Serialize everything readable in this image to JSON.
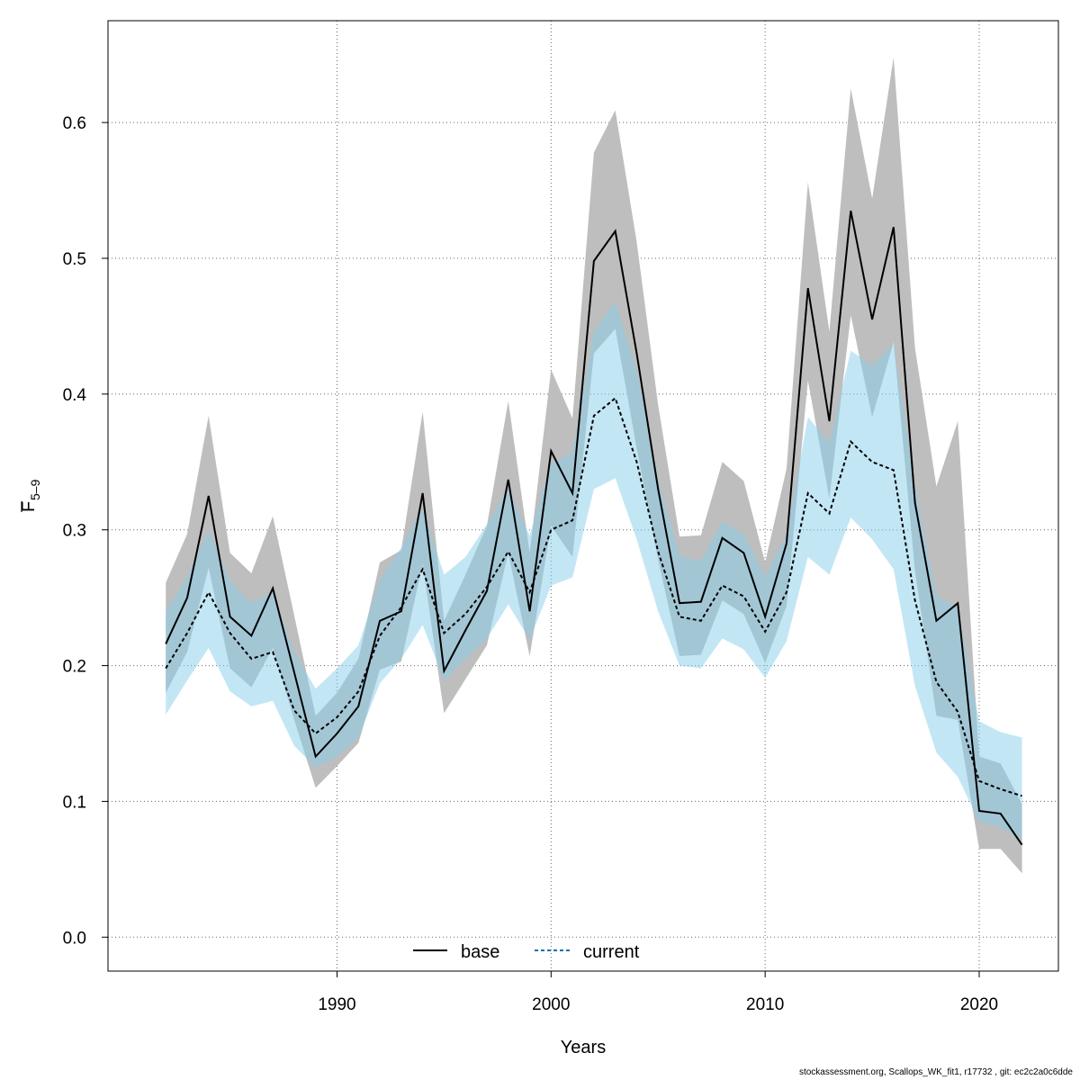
{
  "chart_data": {
    "type": "line",
    "xlabel": "Years",
    "ylabel_main": "F",
    "ylabel_sub": "5–9",
    "xlim": [
      1979.3,
      2023.7
    ],
    "ylim": [
      -0.025,
      0.675
    ],
    "xticks": [
      1990,
      2000,
      2010,
      2020
    ],
    "yticks": [
      "0.0",
      "0.1",
      "0.2",
      "0.3",
      "0.4",
      "0.5",
      "0.6"
    ],
    "grid": true,
    "legend_position": "bottom-center",
    "x": [
      1982,
      1983,
      1984,
      1985,
      1986,
      1987,
      1988,
      1989,
      1990,
      1991,
      1992,
      1993,
      1994,
      1995,
      1996,
      1997,
      1998,
      1999,
      2000,
      2001,
      2002,
      2003,
      2004,
      2005,
      2006,
      2007,
      2008,
      2009,
      2010,
      2011,
      2012,
      2013,
      2014,
      2015,
      2016,
      2017,
      2018,
      2019,
      2020,
      2021,
      2022
    ],
    "series": [
      {
        "name": "base",
        "color": "#000000",
        "band_color": "#bebebe",
        "line_style": "solid",
        "values": [
          0.216,
          0.25,
          0.325,
          0.236,
          0.222,
          0.257,
          0.195,
          0.133,
          0.15,
          0.17,
          0.233,
          0.24,
          0.327,
          0.196,
          0.226,
          0.255,
          0.337,
          0.24,
          0.358,
          0.327,
          0.498,
          0.52,
          0.43,
          0.33,
          0.246,
          0.247,
          0.294,
          0.283,
          0.236,
          0.29,
          0.478,
          0.38,
          0.535,
          0.455,
          0.523,
          0.32,
          0.233,
          0.246,
          0.093,
          0.091,
          0.068
        ],
        "lower": [
          0.18,
          0.21,
          0.272,
          0.198,
          0.184,
          0.213,
          0.16,
          0.11,
          0.126,
          0.143,
          0.197,
          0.203,
          0.275,
          0.165,
          0.19,
          0.215,
          0.283,
          0.207,
          0.303,
          0.28,
          0.43,
          0.448,
          0.36,
          0.278,
          0.207,
          0.208,
          0.248,
          0.238,
          0.202,
          0.244,
          0.41,
          0.323,
          0.458,
          0.383,
          0.438,
          0.27,
          0.163,
          0.16,
          0.065,
          0.065,
          0.047
        ],
        "upper": [
          0.261,
          0.297,
          0.384,
          0.283,
          0.268,
          0.31,
          0.237,
          0.163,
          0.18,
          0.205,
          0.276,
          0.285,
          0.387,
          0.233,
          0.267,
          0.303,
          0.395,
          0.283,
          0.418,
          0.382,
          0.578,
          0.609,
          0.512,
          0.392,
          0.295,
          0.296,
          0.35,
          0.336,
          0.276,
          0.345,
          0.556,
          0.446,
          0.625,
          0.544,
          0.648,
          0.434,
          0.332,
          0.38,
          0.133,
          0.128,
          0.098
        ]
      },
      {
        "name": "current",
        "color": "#0072b2",
        "band_color": "#87ceeb",
        "line_style": "dashed",
        "values": [
          0.198,
          0.224,
          0.254,
          0.224,
          0.205,
          0.21,
          0.167,
          0.15,
          0.162,
          0.181,
          0.222,
          0.243,
          0.271,
          0.224,
          0.238,
          0.258,
          0.284,
          0.254,
          0.3,
          0.307,
          0.384,
          0.397,
          0.35,
          0.284,
          0.236,
          0.233,
          0.259,
          0.251,
          0.225,
          0.254,
          0.327,
          0.312,
          0.365,
          0.35,
          0.344,
          0.248,
          0.188,
          0.166,
          0.115,
          0.109,
          0.104
        ],
        "lower": [
          0.164,
          0.189,
          0.213,
          0.181,
          0.17,
          0.174,
          0.141,
          0.125,
          0.133,
          0.147,
          0.187,
          0.205,
          0.23,
          0.189,
          0.205,
          0.22,
          0.245,
          0.219,
          0.259,
          0.265,
          0.33,
          0.338,
          0.293,
          0.24,
          0.2,
          0.198,
          0.22,
          0.212,
          0.191,
          0.218,
          0.28,
          0.267,
          0.309,
          0.293,
          0.271,
          0.185,
          0.136,
          0.118,
          0.085,
          0.081,
          0.072
        ],
        "upper": [
          0.24,
          0.265,
          0.3,
          0.262,
          0.246,
          0.254,
          0.21,
          0.183,
          0.198,
          0.215,
          0.263,
          0.287,
          0.316,
          0.267,
          0.28,
          0.304,
          0.33,
          0.296,
          0.349,
          0.357,
          0.446,
          0.468,
          0.418,
          0.338,
          0.281,
          0.277,
          0.306,
          0.297,
          0.266,
          0.296,
          0.383,
          0.364,
          0.432,
          0.421,
          0.437,
          0.333,
          0.251,
          0.243,
          0.159,
          0.151,
          0.147
        ]
      }
    ]
  },
  "footer": "stockassessment.org, Scallops_WK_fit1, r17732 , git: ec2c2a0c6dde"
}
